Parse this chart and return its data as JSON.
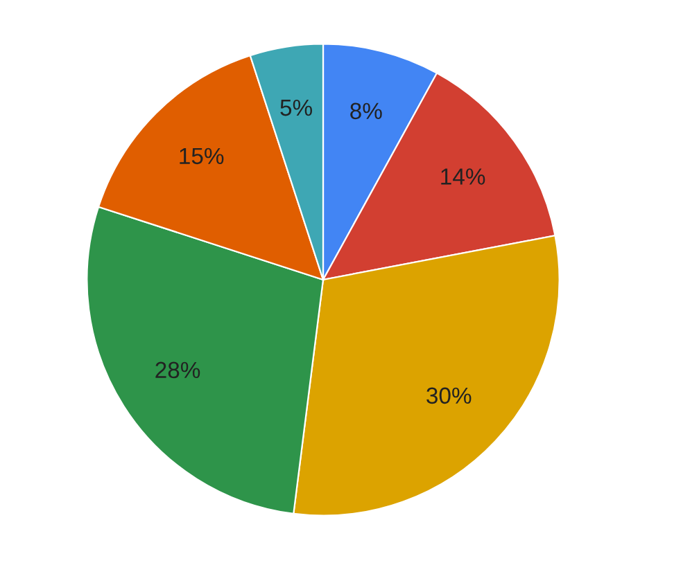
{
  "chart_data": {
    "type": "pie",
    "categories": [
      null,
      null,
      null,
      null,
      null,
      null
    ],
    "values": [
      8,
      14,
      30,
      28,
      15,
      5
    ],
    "colors": [
      "#4285f4",
      "#d23f31",
      "#dca300",
      "#2e944a",
      "#e05e00",
      "#3ea7b4"
    ],
    "value_labels": [
      "8%",
      "14%",
      "30%",
      "28%",
      "15%",
      "5%"
    ],
    "legend": false
  }
}
